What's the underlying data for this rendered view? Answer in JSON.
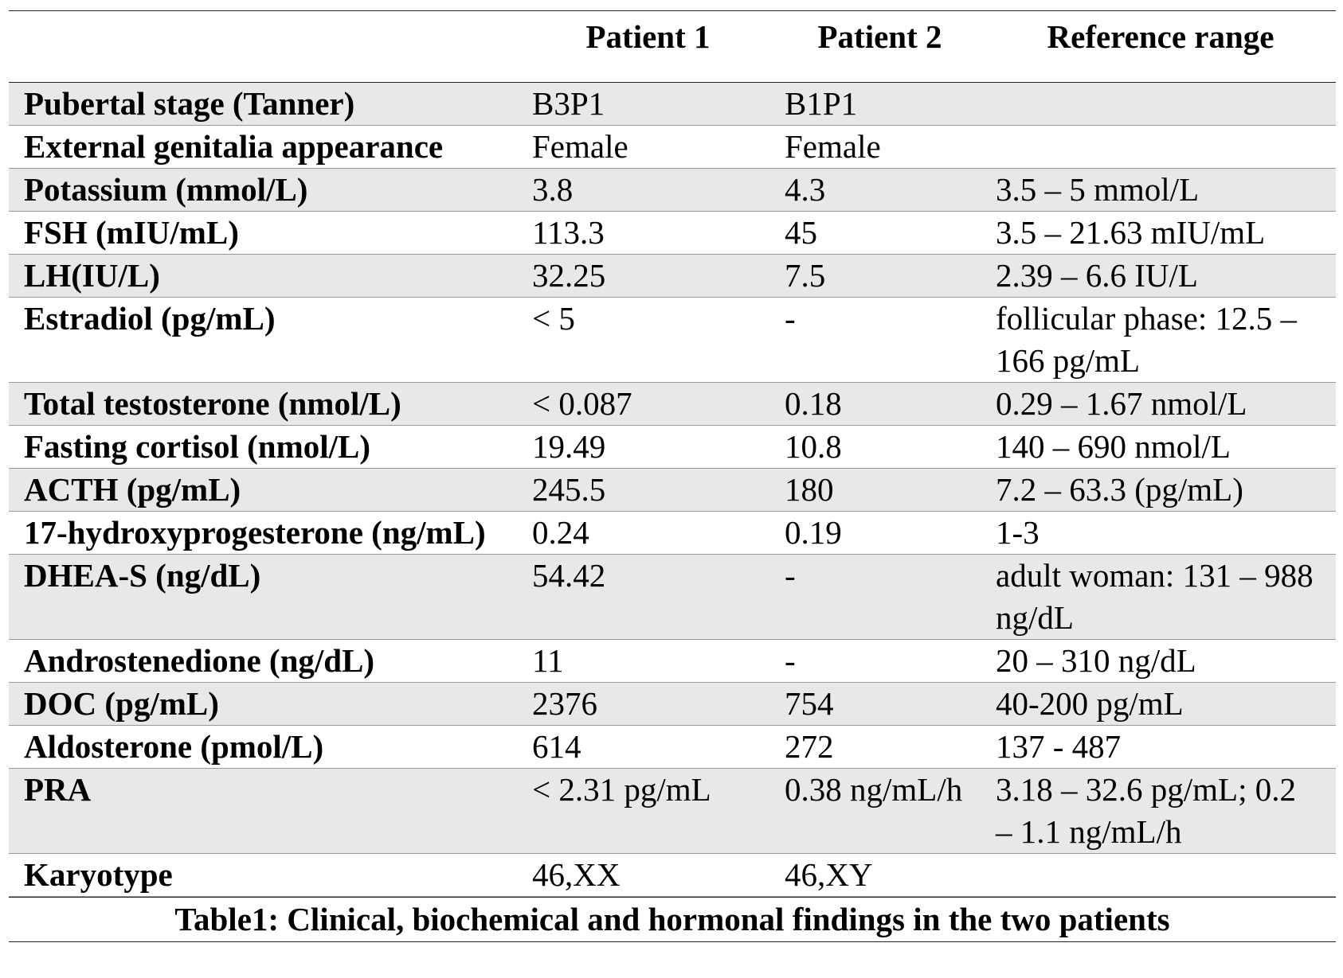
{
  "table": {
    "columns": [
      "Patient 1",
      "Patient 2",
      "Reference range"
    ],
    "rows": [
      {
        "label": "Pubertal stage (Tanner)",
        "patient_1": "B3P1",
        "patient_2": "B1P1"
      },
      {
        "label": "External genitalia appearance",
        "patient_1": "Female",
        "patient_2": "Female"
      },
      {
        "label": "Potassium (mmol/L)",
        "patient_1": "3.8",
        "patient_2": "4.3",
        "reference": "3.5 – 5 mmol/L"
      },
      {
        "label": "FSH (mIU/mL)",
        "patient_1": "113.3",
        "patient_2": "45",
        "reference": "3.5 – 21.63 mIU/mL"
      },
      {
        "label": "LH(IU/L)",
        "patient_1": "32.25",
        "patient_2": "7.5",
        "reference": "2.39 – 6.6 IU/L"
      },
      {
        "label": "Estradiol (pg/mL)",
        "patient_1": "< 5",
        "patient_2": "-",
        "reference": "follicular phase: 12.5 – 166 pg/mL"
      },
      {
        "label": "Total testosterone (nmol/L)",
        "patient_1": "< 0.087",
        "patient_2": "0.18",
        "reference": "0.29 – 1.67 nmol/L"
      },
      {
        "label": "Fasting cortisol (nmol/L)",
        "patient_1": "19.49",
        "patient_2": "10.8",
        "reference": "140 – 690 nmol/L"
      },
      {
        "label": "ACTH (pg/mL)",
        "patient_1": "245.5",
        "patient_2": "180",
        "reference": "7.2 – 63.3 (pg/mL)"
      },
      {
        "label": "17-hydroxyprogesterone (ng/mL)",
        "patient_1": "0.24",
        "patient_2": "0.19",
        "reference": "1-3"
      },
      {
        "label": "DHEA-S (ng/dL)",
        "patient_1": "54.42",
        "patient_2": "-",
        "reference": "adult woman: 131 – 988 ng/dL"
      },
      {
        "label": "Androstenedione (ng/dL)",
        "patient_1": "11",
        "patient_2": "-",
        "reference": "20 – 310 ng/dL"
      },
      {
        "label": "DOC (pg/mL)",
        "patient_1": "2376",
        "patient_2": "754",
        "reference": "40-200 pg/mL"
      },
      {
        "label": "Aldosterone (pmol/L)",
        "patient_1": "614",
        "patient_2": "272",
        "reference": "137 - 487"
      },
      {
        "label": "PRA",
        "patient_1": "< 2.31 pg/mL",
        "patient_2": "0.38 ng/mL/h",
        "reference": "3.18 – 32.6 pg/mL; 0.2 – 1.1 ng/mL/h"
      },
      {
        "label": "Karyotype",
        "patient_1": "46,XX",
        "patient_2": "46,XY"
      }
    ],
    "caption": "Table1:  Clinical, biochemical and hormonal findings in the two patients"
  }
}
